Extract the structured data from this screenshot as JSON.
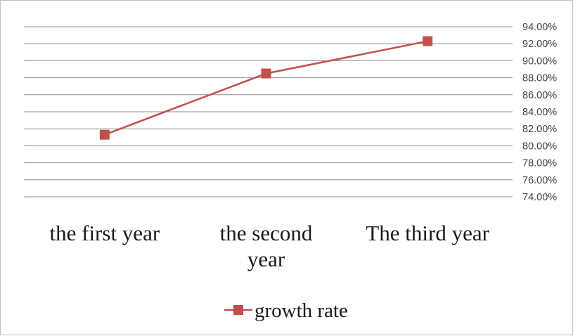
{
  "chart_data": {
    "type": "line",
    "categories": [
      [
        "the first year"
      ],
      [
        "the second",
        "year"
      ],
      [
        "The third year"
      ]
    ],
    "series": [
      {
        "name": "growth rate",
        "values": [
          81.3,
          88.5,
          92.3
        ]
      }
    ],
    "ylim": [
      74,
      94
    ],
    "ytick_step": 2,
    "ytick_labels": [
      "94.00%",
      "92.00%",
      "90.00%",
      "88.00%",
      "86.00%",
      "84.00%",
      "82.00%",
      "80.00%",
      "78.00%",
      "76.00%",
      "74.00%"
    ],
    "y_axis_position": "right",
    "grid": true,
    "legend": "bottom",
    "line_color": "#c0504d",
    "grid_color": "#8c8c8c"
  }
}
